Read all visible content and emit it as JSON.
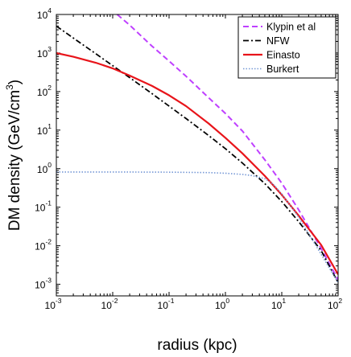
{
  "chart_data": {
    "type": "line",
    "xlabel": "radius (kpc)",
    "ylabel": "DM density (GeV/cm^3)",
    "ylabel_parts": {
      "main": "DM density (GeV/cm",
      "exp": "3",
      "close": ")"
    },
    "x_scale": "log",
    "y_scale": "log",
    "xlim": [
      0.001,
      100
    ],
    "ylim": [
      0.0005,
      10000
    ],
    "x_ticks": [
      {
        "base": "10",
        "exp": "-3",
        "value": 0.001
      },
      {
        "base": "10",
        "exp": "-2",
        "value": 0.01
      },
      {
        "base": "10",
        "exp": "-1",
        "value": 0.1
      },
      {
        "base": "10",
        "exp": "0",
        "value": 1
      },
      {
        "base": "10",
        "exp": "1",
        "value": 10
      },
      {
        "base": "10",
        "exp": "2",
        "value": 100
      }
    ],
    "y_ticks": [
      {
        "base": "10",
        "exp": "-3",
        "value": 0.001
      },
      {
        "base": "10",
        "exp": "-2",
        "value": 0.01
      },
      {
        "base": "10",
        "exp": "-1",
        "value": 0.1
      },
      {
        "base": "10",
        "exp": "0",
        "value": 1
      },
      {
        "base": "10",
        "exp": "1",
        "value": 10
      },
      {
        "base": "10",
        "exp": "2",
        "value": 100
      },
      {
        "base": "10",
        "exp": "3",
        "value": 1000
      },
      {
        "base": "10",
        "exp": "4",
        "value": 10000
      }
    ],
    "grid": false,
    "legend_position": "top-right",
    "series": [
      {
        "name": "Klypin et al",
        "color": "#bf40ff",
        "dash": "dashed",
        "x": [
          0.012,
          0.02,
          0.05,
          0.1,
          0.2,
          0.5,
          1,
          2,
          5,
          10,
          20,
          50,
          100
        ],
        "y": [
          10000,
          5300,
          1500,
          620,
          250,
          70,
          27,
          9.5,
          1.7,
          0.42,
          0.085,
          0.0085,
          0.0013
        ]
      },
      {
        "name": "NFW",
        "color": "#000000",
        "dash": "dashdot",
        "x": [
          0.001,
          0.002,
          0.005,
          0.01,
          0.02,
          0.05,
          0.1,
          0.2,
          0.5,
          1,
          2,
          5,
          10,
          20,
          50,
          100
        ],
        "y": [
          5000,
          2450,
          960,
          470,
          230,
          88,
          42,
          20,
          7.3,
          3.3,
          1.4,
          0.41,
          0.14,
          0.042,
          0.0075,
          0.0011
        ]
      },
      {
        "name": "Einasto",
        "color": "#e8141a",
        "dash": "solid",
        "x": [
          0.001,
          0.002,
          0.005,
          0.01,
          0.02,
          0.05,
          0.1,
          0.2,
          0.5,
          1,
          2,
          5,
          10,
          20,
          50,
          100
        ],
        "y": [
          1000,
          800,
          560,
          400,
          260,
          140,
          80,
          42,
          15,
          6.3,
          2.5,
          0.65,
          0.21,
          0.06,
          0.0105,
          0.0018
        ]
      },
      {
        "name": "Burkert",
        "color": "#7799d6",
        "dash": "dotted",
        "x": [
          0.001,
          0.01,
          0.1,
          0.5,
          1,
          2,
          3,
          5,
          7,
          10,
          20,
          50,
          100
        ],
        "y": [
          0.82,
          0.82,
          0.81,
          0.79,
          0.76,
          0.71,
          0.66,
          0.55,
          0.4,
          0.22,
          0.055,
          0.006,
          0.0011
        ]
      }
    ]
  }
}
